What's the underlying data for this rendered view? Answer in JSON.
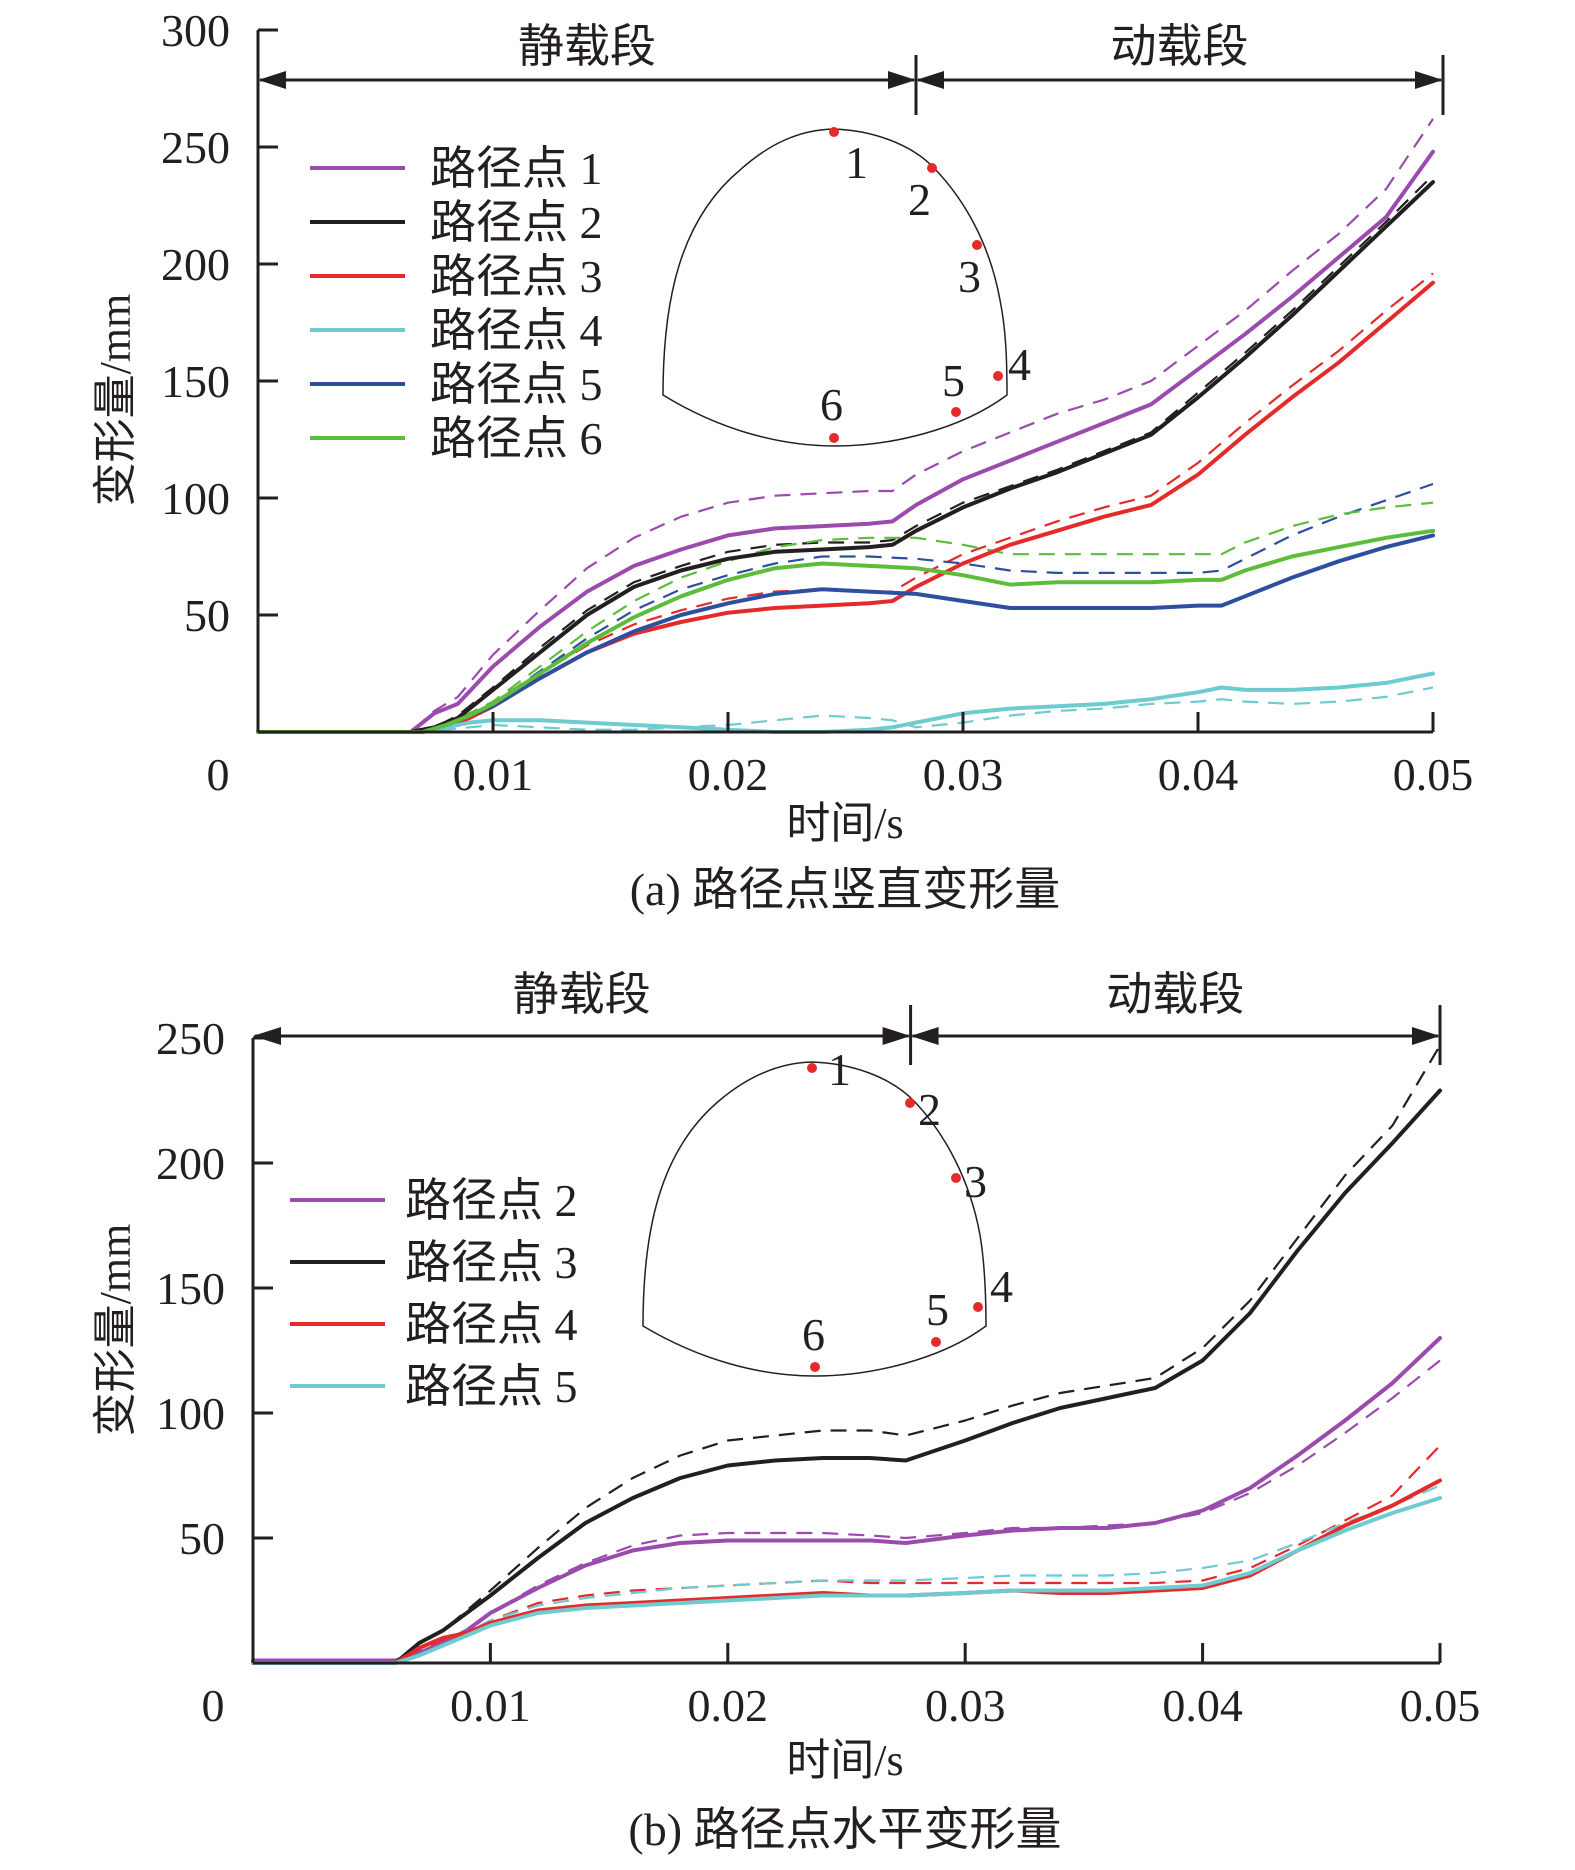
{
  "chart_data": [
    {
      "id": "a",
      "type": "line",
      "caption": "(a) 路径点竖直变形量",
      "xlabel": "时间/s",
      "ylabel": "变形量/mm",
      "xlim": [
        0,
        0.05
      ],
      "ylim": [
        0,
        300
      ],
      "xticks": [
        0,
        0.01,
        0.02,
        0.03,
        0.04,
        0.05
      ],
      "xtick_labels": [
        "0",
        "0.01",
        "0.02",
        "0.03",
        "0.04",
        "0.05"
      ],
      "yticks": [
        50,
        100,
        150,
        200,
        250,
        300
      ],
      "ytick_labels": [
        "50",
        "100",
        "150",
        "200",
        "250",
        "300"
      ],
      "grid": false,
      "legend_position": "top-left",
      "phases": [
        {
          "label": "静载段",
          "x_start": 0,
          "x_end": 0.028
        },
        {
          "label": "动载段",
          "x_start": 0.028,
          "x_end": 0.0505
        }
      ],
      "inset": {
        "points": [
          "1",
          "2",
          "3",
          "4",
          "5",
          "6"
        ]
      },
      "series": [
        {
          "name": "路径点 1",
          "color": "#9b4aad",
          "x": [
            0,
            0.0065,
            0.0075,
            0.0085,
            0.01,
            0.012,
            0.014,
            0.016,
            0.018,
            0.02,
            0.022,
            0.024,
            0.026,
            0.027,
            0.028,
            0.03,
            0.032,
            0.034,
            0.036,
            0.038,
            0.04,
            0.042,
            0.044,
            0.046,
            0.048,
            0.05
          ],
          "y": [
            0,
            0,
            8,
            12,
            28,
            45,
            60,
            71,
            78,
            84,
            87,
            88,
            89,
            90,
            97,
            108,
            116,
            124,
            132,
            140,
            155,
            170,
            186,
            203,
            220,
            248
          ],
          "dashed": {
            "y": [
              0,
              0,
              9,
              15,
              33,
              52,
              70,
              83,
              92,
              98,
              101,
              102,
              103,
              103,
              110,
              120,
              128,
              136,
              142,
              150,
              165,
              180,
              197,
              213,
              232,
              262
            ]
          }
        },
        {
          "name": "路径点 2",
          "color": "#231f20",
          "x": [
            0,
            0.0065,
            0.0075,
            0.0085,
            0.01,
            0.012,
            0.014,
            0.016,
            0.018,
            0.02,
            0.022,
            0.024,
            0.026,
            0.027,
            0.028,
            0.03,
            0.032,
            0.034,
            0.036,
            0.038,
            0.04,
            0.042,
            0.044,
            0.046,
            0.048,
            0.05
          ],
          "y": [
            0,
            0,
            2,
            6,
            18,
            34,
            50,
            62,
            69,
            74,
            77,
            78,
            79,
            80,
            86,
            96,
            104,
            111,
            119,
            127,
            143,
            160,
            178,
            197,
            216,
            235
          ],
          "dashed": {
            "y": [
              0,
              0,
              2,
              7,
              19,
              36,
              52,
              64,
              71,
              77,
              80,
              81,
              81,
              82,
              88,
              98,
              105,
              112,
              120,
              128,
              145,
              162,
              180,
              199,
              218,
              238
            ]
          }
        },
        {
          "name": "路径点 3",
          "color": "#e52a2a",
          "x": [
            0,
            0.007,
            0.008,
            0.009,
            0.01,
            0.012,
            0.014,
            0.016,
            0.018,
            0.02,
            0.022,
            0.024,
            0.026,
            0.027,
            0.028,
            0.03,
            0.032,
            0.034,
            0.036,
            0.038,
            0.04,
            0.042,
            0.044,
            0.046,
            0.048,
            0.05
          ],
          "y": [
            0,
            0,
            2,
            6,
            11,
            23,
            34,
            42,
            47,
            51,
            53,
            54,
            55,
            56,
            62,
            72,
            80,
            86,
            92,
            97,
            110,
            127,
            143,
            158,
            175,
            192
          ],
          "dashed": {
            "y": [
              0,
              0,
              2,
              7,
              13,
              25,
              37,
              46,
              52,
              57,
              60,
              61,
              60,
              60,
              66,
              76,
              83,
              90,
              96,
              101,
              115,
              132,
              148,
              163,
              180,
              196
            ]
          }
        },
        {
          "name": "路径点 4",
          "color": "#6ecbcf",
          "x": [
            0,
            0.007,
            0.008,
            0.009,
            0.01,
            0.012,
            0.014,
            0.016,
            0.018,
            0.02,
            0.022,
            0.024,
            0.026,
            0.027,
            0.028,
            0.03,
            0.032,
            0.034,
            0.036,
            0.038,
            0.04,
            0.041,
            0.042,
            0.044,
            0.046,
            0.048,
            0.05
          ],
          "y": [
            0,
            0,
            2,
            4,
            5,
            5,
            4,
            3,
            2,
            1,
            0,
            0,
            1,
            2,
            4,
            8,
            10,
            11,
            12,
            14,
            17,
            19,
            18,
            18,
            19,
            21,
            25
          ],
          "dashed": {
            "y": [
              0,
              0,
              1,
              2,
              3,
              2,
              1,
              1,
              2,
              3,
              5,
              7,
              6,
              5,
              2,
              4,
              7,
              9,
              10,
              12,
              13,
              14,
              13,
              12,
              13,
              15,
              19
            ]
          }
        },
        {
          "name": "路径点 5",
          "color": "#2e4fa0",
          "x": [
            0,
            0.007,
            0.008,
            0.009,
            0.01,
            0.012,
            0.014,
            0.016,
            0.018,
            0.02,
            0.022,
            0.024,
            0.026,
            0.028,
            0.03,
            0.032,
            0.034,
            0.036,
            0.038,
            0.04,
            0.041,
            0.042,
            0.044,
            0.046,
            0.048,
            0.05
          ],
          "y": [
            0,
            0,
            3,
            7,
            11,
            23,
            34,
            43,
            50,
            55,
            59,
            61,
            60,
            59,
            56,
            53,
            53,
            53,
            53,
            54,
            54,
            58,
            66,
            73,
            79,
            84
          ],
          "dashed": {
            "y": [
              0,
              0,
              3,
              8,
              12,
              26,
              40,
              52,
              61,
              67,
              72,
              75,
              75,
              74,
              72,
              69,
              68,
              68,
              68,
              68,
              69,
              74,
              84,
              92,
              99,
              106
            ]
          }
        },
        {
          "name": "路径点 6",
          "color": "#5cbd3a",
          "x": [
            0,
            0.007,
            0.008,
            0.009,
            0.01,
            0.012,
            0.014,
            0.016,
            0.018,
            0.02,
            0.022,
            0.024,
            0.026,
            0.028,
            0.03,
            0.032,
            0.034,
            0.036,
            0.038,
            0.04,
            0.041,
            0.042,
            0.044,
            0.046,
            0.048,
            0.05
          ],
          "y": [
            0,
            0,
            3,
            7,
            12,
            25,
            38,
            49,
            58,
            65,
            70,
            72,
            71,
            70,
            67,
            63,
            64,
            64,
            64,
            65,
            65,
            69,
            75,
            79,
            83,
            86
          ],
          "dashed": {
            "y": [
              0,
              0,
              3,
              8,
              13,
              28,
              43,
              56,
              66,
              73,
              79,
              82,
              83,
              83,
              80,
              76,
              76,
              76,
              76,
              76,
              76,
              81,
              88,
              93,
              96,
              98
            ]
          }
        }
      ]
    },
    {
      "id": "b",
      "type": "line",
      "caption": "(b) 路径点水平变形量",
      "xlabel": "时间/s",
      "ylabel": "变形量/mm",
      "xlim": [
        0,
        0.05
      ],
      "ylim": [
        0,
        250
      ],
      "xticks": [
        0,
        0.01,
        0.02,
        0.03,
        0.04,
        0.05
      ],
      "xtick_labels": [
        "0",
        "0.01",
        "0.02",
        "0.03",
        "0.04",
        "0.05"
      ],
      "yticks": [
        50,
        100,
        150,
        200,
        250
      ],
      "ytick_labels": [
        "50",
        "100",
        "150",
        "200",
        "250"
      ],
      "grid": false,
      "legend_position": "center-left",
      "phases": [
        {
          "label": "静载段",
          "x_start": 0,
          "x_end": 0.0277
        },
        {
          "label": "动载段",
          "x_start": 0.0277,
          "x_end": 0.05
        }
      ],
      "inset": {
        "points": [
          "1",
          "2",
          "3",
          "4",
          "5",
          "6"
        ]
      },
      "series": [
        {
          "name": "路径点 2",
          "color": "#9b4aad",
          "x": [
            0,
            0.006,
            0.007,
            0.008,
            0.009,
            0.01,
            0.012,
            0.014,
            0.016,
            0.018,
            0.02,
            0.022,
            0.024,
            0.026,
            0.0275,
            0.03,
            0.032,
            0.034,
            0.036,
            0.038,
            0.04,
            0.042,
            0.044,
            0.046,
            0.048,
            0.05
          ],
          "y": [
            1,
            1,
            4,
            8,
            13,
            20,
            30,
            39,
            45,
            48,
            49,
            49,
            49,
            49,
            48,
            51,
            53,
            54,
            54,
            56,
            61,
            70,
            83,
            97,
            112,
            130
          ],
          "dashed": {
            "y": [
              1,
              1,
              4,
              8,
              13,
              20,
              31,
              40,
              47,
              51,
              52,
              52,
              52,
              51,
              50,
              52,
              54,
              54,
              55,
              56,
              60,
              68,
              79,
              92,
              106,
              121
            ]
          }
        },
        {
          "name": "路径点 3",
          "color": "#231f20",
          "x": [
            0,
            0.006,
            0.007,
            0.008,
            0.009,
            0.01,
            0.012,
            0.014,
            0.016,
            0.018,
            0.02,
            0.022,
            0.024,
            0.026,
            0.0275,
            0.03,
            0.032,
            0.034,
            0.036,
            0.038,
            0.04,
            0.042,
            0.044,
            0.046,
            0.048,
            0.05
          ],
          "y": [
            0,
            0,
            8,
            13,
            20,
            27,
            42,
            56,
            66,
            74,
            79,
            81,
            82,
            82,
            81,
            89,
            96,
            102,
            106,
            110,
            121,
            140,
            165,
            188,
            208,
            229
          ],
          "dashed": {
            "y": [
              0,
              0,
              8,
              13,
              21,
              29,
              46,
              62,
              74,
              83,
              89,
              91,
              93,
              93,
              91,
              97,
              103,
              108,
              111,
              114,
              126,
              145,
              170,
              195,
              215,
              247
            ]
          }
        },
        {
          "name": "路径点 4",
          "color": "#e52a2a",
          "x": [
            0,
            0.006,
            0.007,
            0.008,
            0.009,
            0.01,
            0.012,
            0.014,
            0.016,
            0.018,
            0.02,
            0.022,
            0.024,
            0.026,
            0.0275,
            0.03,
            0.032,
            0.034,
            0.036,
            0.038,
            0.04,
            0.042,
            0.044,
            0.046,
            0.048,
            0.05
          ],
          "y": [
            0,
            0,
            6,
            10,
            12,
            16,
            21,
            23,
            24,
            25,
            26,
            27,
            28,
            27,
            27,
            28,
            29,
            28,
            28,
            29,
            30,
            35,
            45,
            55,
            63,
            73
          ],
          "dashed": {
            "y": [
              0,
              0,
              5,
              9,
              12,
              17,
              24,
              27,
              29,
              30,
              31,
              32,
              33,
              32,
              32,
              32,
              32,
              32,
              32,
              32,
              33,
              38,
              47,
              57,
              67,
              87
            ]
          }
        },
        {
          "name": "路径点 5",
          "color": "#6ecbcf",
          "x": [
            0,
            0.006,
            0.007,
            0.008,
            0.009,
            0.01,
            0.012,
            0.014,
            0.016,
            0.018,
            0.02,
            0.022,
            0.024,
            0.026,
            0.0275,
            0.03,
            0.032,
            0.034,
            0.036,
            0.038,
            0.04,
            0.042,
            0.044,
            0.046,
            0.048,
            0.05
          ],
          "y": [
            0,
            0,
            3,
            7,
            11,
            15,
            20,
            22,
            23,
            24,
            25,
            26,
            27,
            27,
            27,
            28,
            29,
            29,
            29,
            30,
            31,
            36,
            45,
            53,
            60,
            66
          ],
          "dashed": {
            "y": [
              0,
              0,
              4,
              8,
              12,
              17,
              23,
              26,
              28,
              30,
              31,
              32,
              33,
              33,
              33,
              34,
              35,
              35,
              35,
              36,
              38,
              41,
              48,
              56,
              63,
              71
            ]
          }
        }
      ]
    }
  ]
}
